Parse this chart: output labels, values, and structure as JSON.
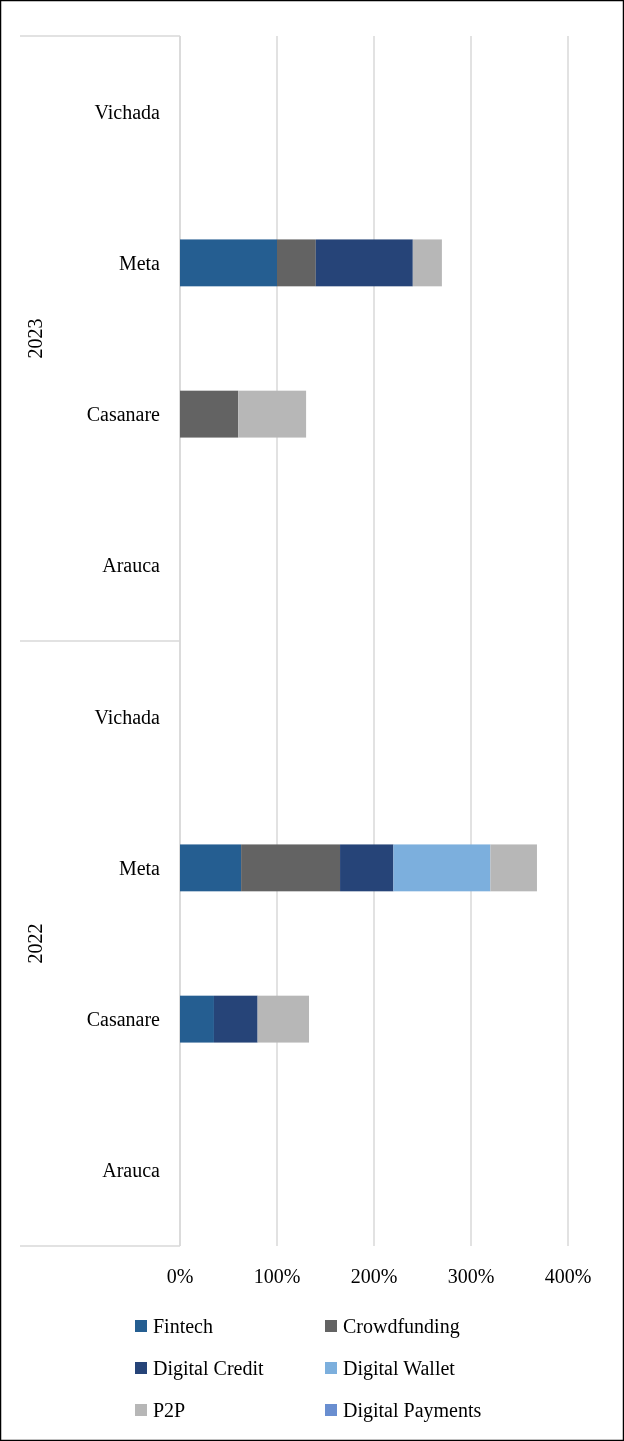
{
  "chart_data": {
    "type": "bar",
    "orientation": "horizontal",
    "stacked": true,
    "categories": [
      "Vichada",
      "Meta",
      "Casanare",
      "Arauca",
      "Vichada",
      "Meta",
      "Casanare",
      "Arauca"
    ],
    "series": [
      {
        "name": "Fintech",
        "color": "#255e91",
        "values": [
          0,
          100,
          0,
          0,
          0,
          63,
          35,
          0
        ]
      },
      {
        "name": "Crowdfunding",
        "color": "#636363",
        "values": [
          0,
          40,
          60,
          0,
          0,
          102,
          0,
          0
        ]
      },
      {
        "name": "Digital Credit",
        "color": "#264478",
        "values": [
          0,
          100,
          0,
          0,
          0,
          55,
          45,
          0
        ]
      },
      {
        "name": "Digital Wallet",
        "color": "#7cafdd",
        "values": [
          0,
          0,
          0,
          0,
          0,
          100,
          0,
          0
        ]
      },
      {
        "name": "P2P",
        "color": "#b7b7b7",
        "values": [
          0,
          30,
          70,
          0,
          0,
          48,
          53,
          0
        ]
      },
      {
        "name": "Digital Payments",
        "color": "#698ed0",
        "values": [
          0,
          0,
          0,
          0,
          0,
          0,
          0,
          0
        ]
      }
    ],
    "xlim": [
      0,
      400
    ],
    "xticks": [
      {
        "value": 0,
        "label": "0%"
      },
      {
        "value": 100,
        "label": "100%"
      },
      {
        "value": 200,
        "label": "200%"
      },
      {
        "value": 300,
        "label": "300%"
      },
      {
        "value": 400,
        "label": "400%"
      }
    ],
    "grid": "x",
    "legend": "bottom",
    "annotations": [
      "2023",
      "2022"
    ]
  }
}
